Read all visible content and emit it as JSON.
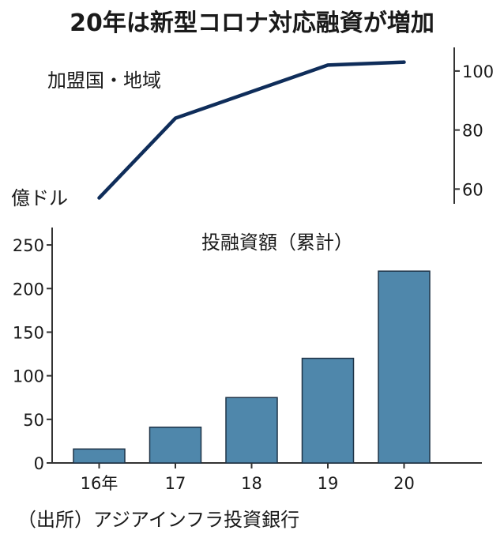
{
  "title": "20年は新型コロナ対応融資が増加",
  "source": "（出所）アジアインフラ投資銀行",
  "colors": {
    "line": "#0f2d5a",
    "bar": "#4f87ab",
    "bar_edge": "#1f3347",
    "axis": "#333333"
  },
  "chart_data": [
    {
      "type": "line",
      "series": [
        {
          "name": "加盟国・地域",
          "x": [
            "16年",
            "17",
            "18",
            "19",
            "20"
          ],
          "values": [
            57,
            84,
            93,
            102,
            103
          ]
        }
      ],
      "y_axis": {
        "side": "right",
        "ticks": [
          "60",
          "80",
          "100"
        ],
        "ylim": [
          55,
          108
        ]
      },
      "annotation": "億ドル"
    },
    {
      "type": "bar",
      "categories": [
        "16年",
        "17",
        "18",
        "19",
        "20"
      ],
      "series": [
        {
          "name": "投融資額（累計）",
          "values": [
            16,
            41,
            75,
            120,
            220
          ]
        }
      ],
      "y_axis": {
        "side": "left",
        "ticks": [
          "0",
          "50",
          "100",
          "150",
          "200",
          "250"
        ],
        "ylim": [
          0,
          270
        ]
      }
    }
  ]
}
